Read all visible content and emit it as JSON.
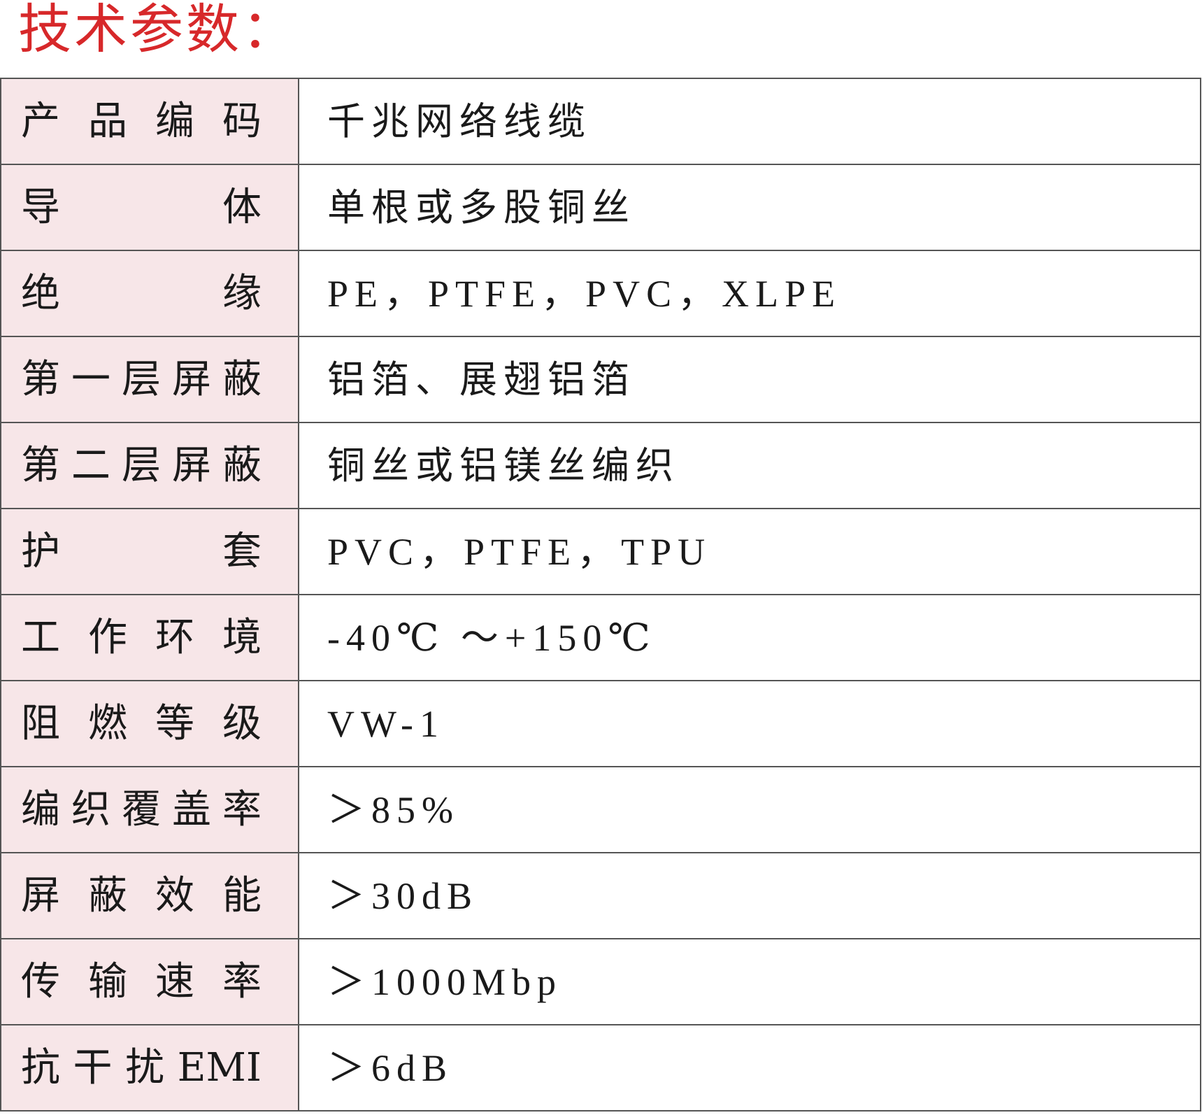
{
  "title": "技术参数：",
  "rows": [
    {
      "label": "产品编码",
      "value": "千兆网络线缆"
    },
    {
      "label": "导体",
      "value": "单根或多股铜丝"
    },
    {
      "label": "绝缘",
      "value": "PE，PTFE，PVC，XLPE"
    },
    {
      "label": "第一层屏蔽",
      "value": "铝箔、展翅铝箔"
    },
    {
      "label": "第二层屏蔽",
      "value": "铜丝或铝镁丝编织"
    },
    {
      "label": "护套",
      "value": "PVC，PTFE，TPU"
    },
    {
      "label": "工作环境",
      "value": "-40℃ ～+150℃"
    },
    {
      "label": "阻燃等级",
      "value": "VW-1"
    },
    {
      "label": "编织覆盖率",
      "value": "＞85%"
    },
    {
      "label": "屏蔽效能",
      "value": "＞30dB"
    },
    {
      "label": "传输速率",
      "value": "＞1000Mbp"
    },
    {
      "label": "抗干扰EMI",
      "value": "＞6dB"
    }
  ],
  "colors": {
    "title": "#d7282a",
    "label_bg": "#f7e6e8",
    "border": "#555555"
  }
}
